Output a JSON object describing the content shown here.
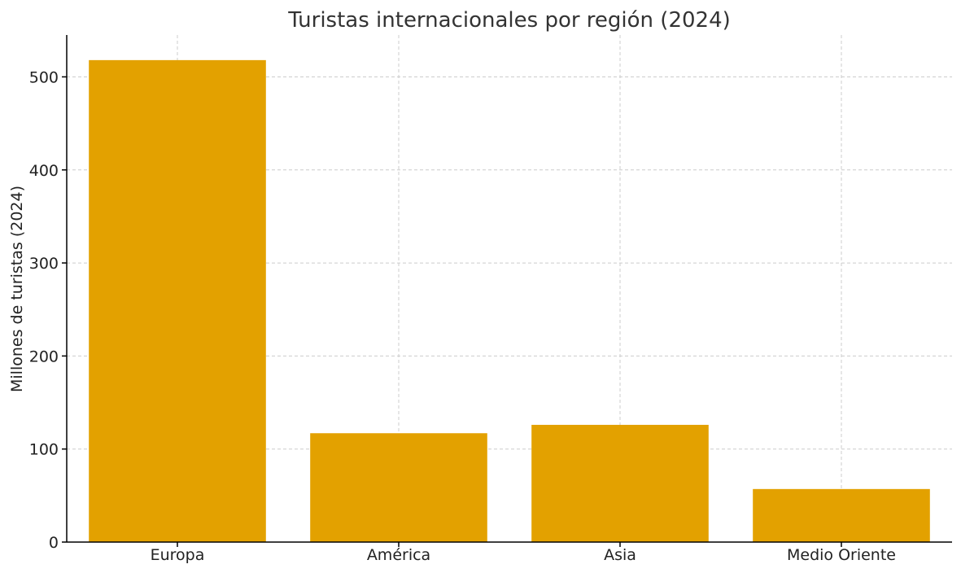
{
  "chart_data": {
    "type": "bar",
    "title": "Turistas internacionales por región (2024)",
    "xlabel": "",
    "ylabel": "Millones de turistas (2024)",
    "categories": [
      "Europa",
      "América",
      "Asia",
      "Medio Oriente"
    ],
    "values": [
      518,
      117,
      126,
      57
    ],
    "ylim": [
      0,
      545
    ],
    "yticks": [
      0,
      100,
      200,
      300,
      400,
      500
    ],
    "grid": true,
    "bar_color": "#e3a100"
  }
}
